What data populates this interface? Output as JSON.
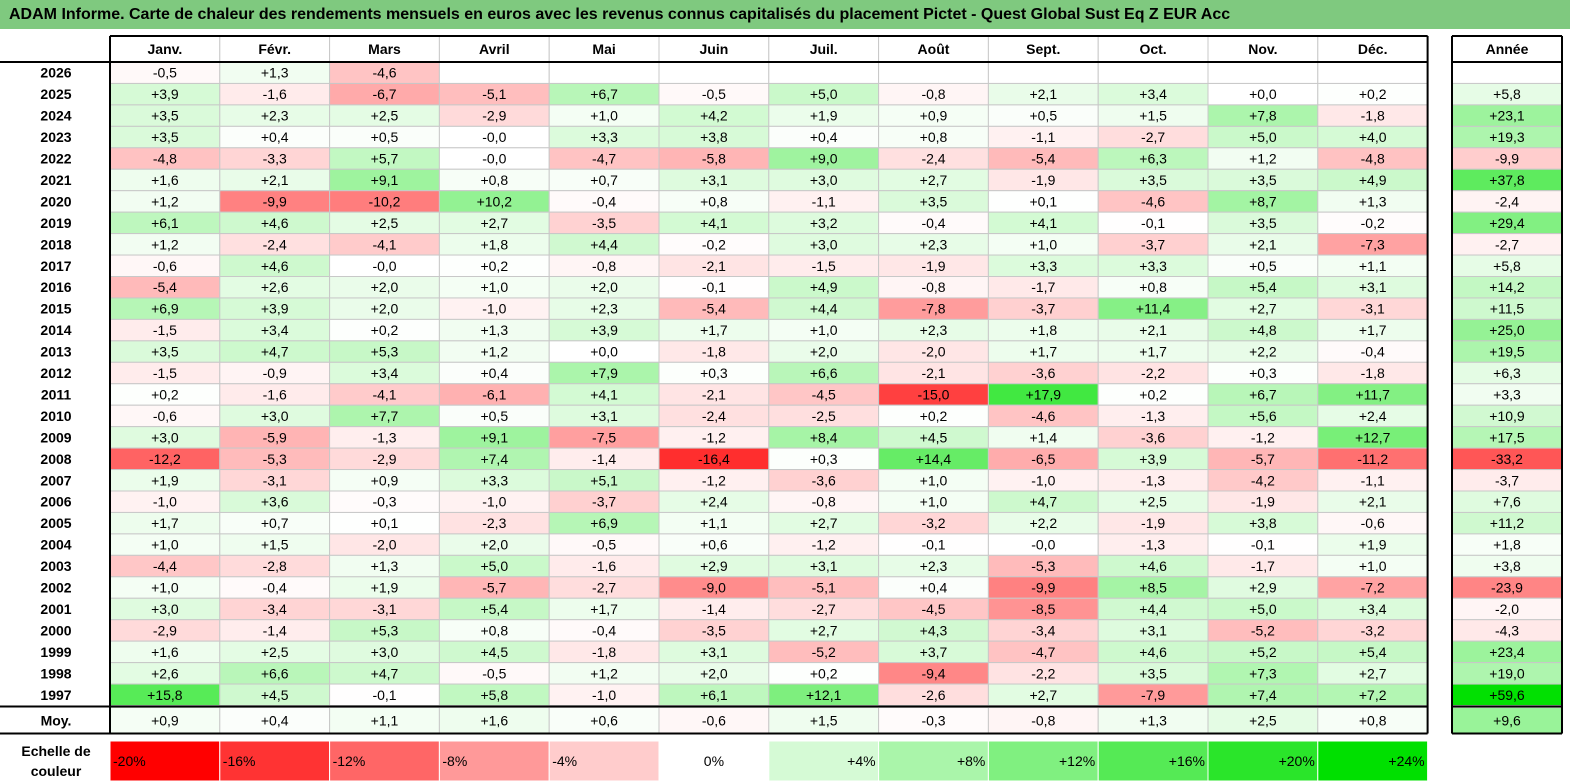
{
  "header": {
    "title": "ADAM Informe. Carte de chaleur des rendements mensuels en euros avec les revenus connus capitalisés du placement Pictet - Quest Global Sust Eq Z EUR Acc"
  },
  "chart_data": {
    "type": "heatmap",
    "title": "ADAM Informe. Carte de chaleur des rendements mensuels en euros avec les revenus connus capitalisés du placement Pictet - Quest Global Sust Eq Z EUR Acc",
    "columns": [
      "Janv.",
      "Févr.",
      "Mars",
      "Avril",
      "Mai",
      "Juin",
      "Juil.",
      "Août",
      "Sept.",
      "Oct.",
      "Nov.",
      "Déc."
    ],
    "year_column_label": "Année",
    "average_row_label": "Moy.",
    "rows": [
      {
        "year": "2026",
        "months": [
          "-0,5",
          "+1,3",
          "-4,6",
          "",
          "",
          "",
          "",
          "",
          "",
          "",
          "",
          ""
        ],
        "annual": ""
      },
      {
        "year": "2025",
        "months": [
          "+3,9",
          "-1,6",
          "-6,7",
          "-5,1",
          "+6,7",
          "-0,5",
          "+5,0",
          "-0,8",
          "+2,1",
          "+3,4",
          "+0,0",
          "+0,2"
        ],
        "annual": "+5,8"
      },
      {
        "year": "2024",
        "months": [
          "+3,5",
          "+2,3",
          "+2,5",
          "-2,9",
          "+1,0",
          "+4,2",
          "+1,9",
          "+0,9",
          "+0,5",
          "+1,5",
          "+7,8",
          "-1,8"
        ],
        "annual": "+23,1"
      },
      {
        "year": "2023",
        "months": [
          "+3,5",
          "+0,4",
          "+0,5",
          "-0,0",
          "+3,3",
          "+3,8",
          "+0,4",
          "+0,8",
          "-1,1",
          "-2,7",
          "+5,0",
          "+4,0"
        ],
        "annual": "+19,3"
      },
      {
        "year": "2022",
        "months": [
          "-4,8",
          "-3,3",
          "+5,7",
          "-0,0",
          "-4,7",
          "-5,8",
          "+9,0",
          "-2,4",
          "-5,4",
          "+6,3",
          "+1,2",
          "-4,8"
        ],
        "annual": "-9,9"
      },
      {
        "year": "2021",
        "months": [
          "+1,6",
          "+2,1",
          "+9,1",
          "+0,8",
          "+0,7",
          "+3,1",
          "+3,0",
          "+2,7",
          "-1,9",
          "+3,5",
          "+3,5",
          "+4,9"
        ],
        "annual": "+37,8"
      },
      {
        "year": "2020",
        "months": [
          "+1,2",
          "-9,9",
          "-10,2",
          "+10,2",
          "-0,4",
          "+0,8",
          "-1,1",
          "+3,5",
          "+0,1",
          "-4,6",
          "+8,7",
          "+1,3"
        ],
        "annual": "-2,4"
      },
      {
        "year": "2019",
        "months": [
          "+6,1",
          "+4,6",
          "+2,5",
          "+2,7",
          "-3,5",
          "+4,1",
          "+3,2",
          "-0,4",
          "+4,1",
          "-0,1",
          "+3,5",
          "-0,2"
        ],
        "annual": "+29,4"
      },
      {
        "year": "2018",
        "months": [
          "+1,2",
          "-2,4",
          "-4,1",
          "+1,8",
          "+4,4",
          "-0,2",
          "+3,0",
          "+2,3",
          "+1,0",
          "-3,7",
          "+2,1",
          "-7,3"
        ],
        "annual": "-2,7"
      },
      {
        "year": "2017",
        "months": [
          "-0,6",
          "+4,6",
          "-0,0",
          "+0,2",
          "-0,8",
          "-2,1",
          "-1,5",
          "-1,9",
          "+3,3",
          "+3,3",
          "+0,5",
          "+1,1"
        ],
        "annual": "+5,8"
      },
      {
        "year": "2016",
        "months": [
          "-5,4",
          "+2,6",
          "+2,0",
          "+1,0",
          "+2,0",
          "-0,1",
          "+4,9",
          "-0,8",
          "-1,7",
          "+0,8",
          "+5,4",
          "+3,1"
        ],
        "annual": "+14,2"
      },
      {
        "year": "2015",
        "months": [
          "+6,9",
          "+3,9",
          "+2,0",
          "-1,0",
          "+2,3",
          "-5,4",
          "+4,4",
          "-7,8",
          "-3,7",
          "+11,4",
          "+2,7",
          "-3,1"
        ],
        "annual": "+11,5"
      },
      {
        "year": "2014",
        "months": [
          "-1,5",
          "+3,4",
          "+0,2",
          "+1,3",
          "+3,9",
          "+1,7",
          "+1,0",
          "+2,3",
          "+1,8",
          "+2,1",
          "+4,8",
          "+1,7"
        ],
        "annual": "+25,0"
      },
      {
        "year": "2013",
        "months": [
          "+3,5",
          "+4,7",
          "+5,3",
          "+1,2",
          "+0,0",
          "-1,8",
          "+2,0",
          "-2,0",
          "+1,7",
          "+1,7",
          "+2,2",
          "-0,4"
        ],
        "annual": "+19,5"
      },
      {
        "year": "2012",
        "months": [
          "-1,5",
          "-0,9",
          "+3,4",
          "+0,4",
          "+7,9",
          "+0,3",
          "+6,6",
          "-2,1",
          "-3,6",
          "-2,2",
          "+0,3",
          "-1,8"
        ],
        "annual": "+6,3"
      },
      {
        "year": "2011",
        "months": [
          "+0,2",
          "-1,6",
          "-4,1",
          "-6,1",
          "+4,1",
          "-2,1",
          "-4,5",
          "-15,0",
          "+17,9",
          "+0,2",
          "+6,7",
          "+11,7"
        ],
        "annual": "+3,3"
      },
      {
        "year": "2010",
        "months": [
          "-0,6",
          "+3,0",
          "+7,7",
          "+0,5",
          "+3,1",
          "-2,4",
          "-2,5",
          "+0,2",
          "-4,6",
          "-1,3",
          "+5,6",
          "+2,4"
        ],
        "annual": "+10,9"
      },
      {
        "year": "2009",
        "months": [
          "+3,0",
          "-5,9",
          "-1,3",
          "+9,1",
          "-7,5",
          "-1,2",
          "+8,4",
          "+4,5",
          "+1,4",
          "-3,6",
          "-1,2",
          "+12,7"
        ],
        "annual": "+17,5"
      },
      {
        "year": "2008",
        "months": [
          "-12,2",
          "-5,3",
          "-2,9",
          "+7,4",
          "-1,4",
          "-16,4",
          "+0,3",
          "+14,4",
          "-6,5",
          "+3,9",
          "-5,7",
          "-11,2"
        ],
        "annual": "-33,2"
      },
      {
        "year": "2007",
        "months": [
          "+1,9",
          "-3,1",
          "+0,9",
          "+3,3",
          "+5,1",
          "-1,2",
          "-3,6",
          "+1,0",
          "-1,0",
          "-1,3",
          "-4,2",
          "-1,1"
        ],
        "annual": "-3,7"
      },
      {
        "year": "2006",
        "months": [
          "-1,0",
          "+3,6",
          "-0,3",
          "-1,0",
          "-3,7",
          "+2,4",
          "-0,8",
          "+1,0",
          "+4,7",
          "+2,5",
          "-1,9",
          "+2,1"
        ],
        "annual": "+7,6"
      },
      {
        "year": "2005",
        "months": [
          "+1,7",
          "+0,7",
          "+0,1",
          "-2,3",
          "+6,9",
          "+1,1",
          "+2,7",
          "-3,2",
          "+2,2",
          "-1,9",
          "+3,8",
          "-0,6"
        ],
        "annual": "+11,2"
      },
      {
        "year": "2004",
        "months": [
          "+1,0",
          "+1,5",
          "-2,0",
          "+2,0",
          "-0,5",
          "+0,6",
          "-1,2",
          "-0,1",
          "-0,0",
          "-1,3",
          "-0,1",
          "+1,9"
        ],
        "annual": "+1,8"
      },
      {
        "year": "2003",
        "months": [
          "-4,4",
          "-2,8",
          "+1,3",
          "+5,0",
          "-1,6",
          "+2,9",
          "+3,1",
          "+2,3",
          "-5,3",
          "+4,6",
          "-1,7",
          "+1,0"
        ],
        "annual": "+3,8"
      },
      {
        "year": "2002",
        "months": [
          "+1,0",
          "-0,4",
          "+1,9",
          "-5,7",
          "-2,7",
          "-9,0",
          "-5,1",
          "+0,4",
          "-9,9",
          "+8,5",
          "+2,9",
          "-7,2"
        ],
        "annual": "-23,9"
      },
      {
        "year": "2001",
        "months": [
          "+3,0",
          "-3,4",
          "-3,1",
          "+5,4",
          "+1,7",
          "-1,4",
          "-2,7",
          "-4,5",
          "-8,5",
          "+4,4",
          "+5,0",
          "+3,4"
        ],
        "annual": "-2,0"
      },
      {
        "year": "2000",
        "months": [
          "-2,9",
          "-1,4",
          "+5,3",
          "+0,8",
          "-0,4",
          "-3,5",
          "+2,7",
          "+4,3",
          "-3,4",
          "+3,1",
          "-5,2",
          "-3,2"
        ],
        "annual": "-4,3"
      },
      {
        "year": "1999",
        "months": [
          "+1,6",
          "+2,5",
          "+3,0",
          "+4,5",
          "-1,8",
          "+3,1",
          "-5,2",
          "+3,7",
          "-4,7",
          "+4,6",
          "+5,2",
          "+5,4"
        ],
        "annual": "+23,4"
      },
      {
        "year": "1998",
        "months": [
          "+2,6",
          "+6,6",
          "+4,7",
          "-0,5",
          "+1,2",
          "+2,0",
          "+0,2",
          "-9,4",
          "-2,2",
          "+3,5",
          "+7,3",
          "+2,7"
        ],
        "annual": "+19,0"
      },
      {
        "year": "1997",
        "months": [
          "+15,8",
          "+4,5",
          "-0,1",
          "+5,8",
          "-1,0",
          "+6,1",
          "+12,1",
          "-2,6",
          "+2,7",
          "-7,9",
          "+7,4",
          "+7,2"
        ],
        "annual": "+59,6"
      }
    ],
    "averages": {
      "months": [
        "+0,9",
        "+0,4",
        "+1,1",
        "+1,6",
        "+0,6",
        "-0,6",
        "+1,5",
        "-0,3",
        "-0,8",
        "+1,3",
        "+2,5",
        "+0,8"
      ],
      "annual": "+9,6"
    },
    "legend": {
      "title_line1": "Echelle de",
      "title_line2": "couleur",
      "steps": [
        "-20%",
        "-16%",
        "-12%",
        "-8%",
        "-4%",
        "0%",
        "+4%",
        "+8%",
        "+12%",
        "+16%",
        "+20%",
        "+24%"
      ]
    },
    "scale": {
      "min": -20,
      "max": 24
    },
    "colors": {
      "negative": "#ff0000",
      "zero": "#ffffff",
      "positive": "#00e000",
      "title_bar": "#7fc97f"
    }
  }
}
